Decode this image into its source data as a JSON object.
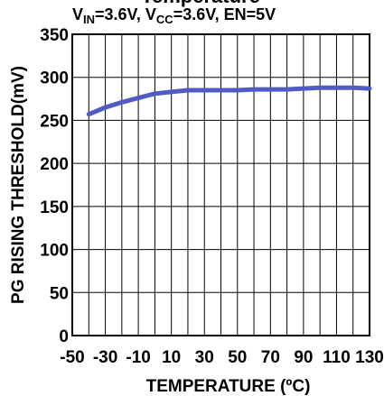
{
  "chart_data": {
    "type": "line",
    "title_top": "Temperature",
    "subtitle_parts": {
      "vin_main": "V",
      "vin_sub": "IN",
      "vin_rest": "=3.6V, V",
      "vcc_sub": "CC",
      "vcc_rest": "=3.6V, EN=5V"
    },
    "xlabel": "TEMPERATURE (ºC)",
    "ylabel": "PG RISING THRESHOLD(mV)",
    "xlim": [
      -50,
      130
    ],
    "ylim": [
      0,
      350
    ],
    "x_ticks": [
      -50,
      -30,
      -10,
      10,
      30,
      50,
      70,
      90,
      110,
      130
    ],
    "x_tick_labels": [
      "-50",
      "-30",
      "-10",
      "10",
      "30",
      "50",
      "70",
      "90",
      "110",
      "130"
    ],
    "y_ticks": [
      0,
      50,
      100,
      150,
      200,
      250,
      300,
      350
    ],
    "y_tick_labels": [
      "0",
      "50",
      "100",
      "150",
      "200",
      "250",
      "300",
      "350"
    ],
    "grid": true,
    "line_color": "#4f5cc4",
    "series": [
      {
        "x": [
          -40,
          -30,
          -20,
          -10,
          0,
          10,
          20,
          30,
          40,
          50,
          60,
          70,
          80,
          90,
          100,
          110,
          120,
          130
        ],
        "values": [
          257,
          265,
          271,
          276,
          281,
          283,
          285,
          285,
          285,
          285,
          286,
          286,
          286,
          287,
          288,
          288,
          288,
          287
        ]
      }
    ]
  }
}
